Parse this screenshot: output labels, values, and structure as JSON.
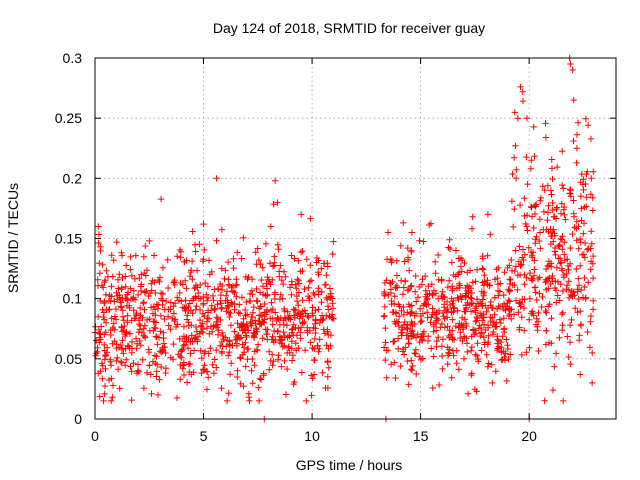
{
  "chart_data": {
    "type": "scatter",
    "title": "Day 124 of 2018, SRMTID for receiver guay",
    "xlabel": "GPS time / hours",
    "ylabel": "SRMTID / TECUs",
    "xlim": [
      0,
      24
    ],
    "ylim": [
      0,
      0.3
    ],
    "x_ticks": [
      0,
      5,
      10,
      15,
      20
    ],
    "x_tick_labels": [
      "0",
      "5",
      "10",
      "15",
      "20"
    ],
    "y_ticks": [
      0,
      0.05,
      0.1,
      0.15,
      0.2,
      0.25,
      0.3
    ],
    "y_tick_labels": [
      "0",
      "0.05",
      "0.1",
      "0.15",
      "0.2",
      "0.25",
      "0.3"
    ],
    "grid": true,
    "marker": "+",
    "color": "#ff0000",
    "series": [
      {
        "name": "SRMTID",
        "segments": [
          {
            "x_start": 0.0,
            "x_end": 11.0,
            "typical_range": [
              0.03,
              0.13
            ]
          },
          {
            "x_start": 13.3,
            "x_end": 19.2,
            "typical_range": [
              0.04,
              0.13
            ]
          },
          {
            "x_start": 19.2,
            "x_end": 23.0,
            "typical_range": [
              0.05,
              0.22
            ]
          }
        ],
        "notable_points": [
          {
            "x": 0.15,
            "y": 0.16
          },
          {
            "x": 0.25,
            "y": 0.143
          },
          {
            "x": 0.8,
            "y": 0.018
          },
          {
            "x": 1.0,
            "y": 0.147
          },
          {
            "x": 2.5,
            "y": 0.148
          },
          {
            "x": 2.9,
            "y": 0.02
          },
          {
            "x": 5.0,
            "y": 0.162
          },
          {
            "x": 5.6,
            "y": 0.2
          },
          {
            "x": 7.8,
            "y": 0.0
          },
          {
            "x": 8.1,
            "y": 0.16
          },
          {
            "x": 8.3,
            "y": 0.198
          },
          {
            "x": 8.4,
            "y": 0.18
          },
          {
            "x": 9.5,
            "y": 0.17
          },
          {
            "x": 10.3,
            "y": 0.12
          },
          {
            "x": 13.4,
            "y": 0.0
          },
          {
            "x": 13.5,
            "y": 0.155
          },
          {
            "x": 14.2,
            "y": 0.163
          },
          {
            "x": 14.6,
            "y": 0.155
          },
          {
            "x": 17.4,
            "y": 0.168
          },
          {
            "x": 18.1,
            "y": 0.17
          },
          {
            "x": 18.3,
            "y": 0.03
          },
          {
            "x": 19.4,
            "y": 0.2
          },
          {
            "x": 19.6,
            "y": 0.276
          },
          {
            "x": 19.7,
            "y": 0.272
          },
          {
            "x": 19.9,
            "y": 0.25
          },
          {
            "x": 20.0,
            "y": 0.0
          },
          {
            "x": 20.1,
            "y": 0.215
          },
          {
            "x": 20.5,
            "y": 0.155
          },
          {
            "x": 21.0,
            "y": 0.19
          },
          {
            "x": 21.1,
            "y": 0.024
          },
          {
            "x": 21.9,
            "y": 0.295
          },
          {
            "x": 22.0,
            "y": 0.29
          },
          {
            "x": 22.05,
            "y": 0.265
          },
          {
            "x": 22.2,
            "y": 0.225
          },
          {
            "x": 22.4,
            "y": 0.175
          },
          {
            "x": 22.6,
            "y": 0.1
          },
          {
            "x": 22.9,
            "y": 0.03
          }
        ],
        "generated_points": 1800
      }
    ]
  }
}
